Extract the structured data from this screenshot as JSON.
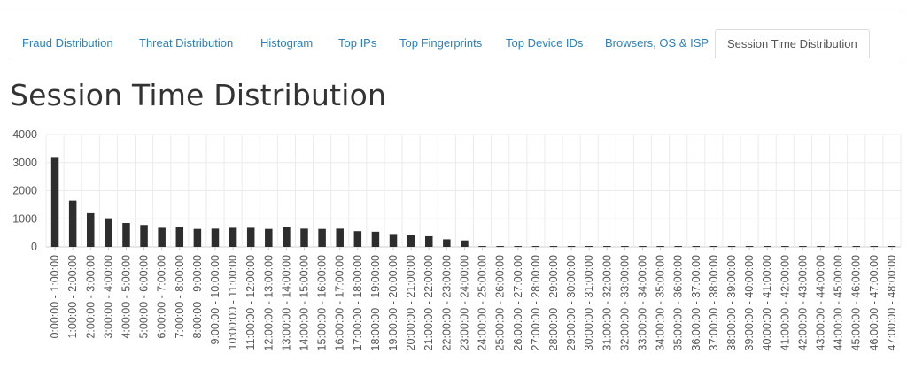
{
  "tabs": [
    {
      "label": "Fraud Distribution"
    },
    {
      "label": "Threat Distribution"
    },
    {
      "label": "Histogram"
    },
    {
      "label": "Top IPs"
    },
    {
      "label": "Top Fingerprints"
    },
    {
      "label": "Top Device IDs"
    },
    {
      "label": "Browsers, OS & ISP"
    },
    {
      "label": "Session Time Distribution",
      "active": true
    }
  ],
  "page": {
    "title": "Session Time Distribution"
  },
  "colors": {
    "bar": "#2d2d2d",
    "grid": "#ebebeb",
    "axis": "#cfcfcf",
    "tab_link": "#2c7fb8"
  },
  "chart_data": {
    "type": "bar",
    "title": "",
    "xlabel": "",
    "ylabel": "",
    "ylim": [
      0,
      4000
    ],
    "yticks": [
      0,
      1000,
      2000,
      3000,
      4000
    ],
    "ytick_labels": [
      "0",
      "1000",
      "2000",
      "3000",
      "4000"
    ],
    "grid": true,
    "categories": [
      "0:00:00 - 1:00:00",
      "1:00:00 - 2:00:00",
      "2:00:00 - 3:00:00",
      "3:00:00 - 4:00:00",
      "4:00:00 - 5:00:00",
      "5:00:00 - 6:00:00",
      "6:00:00 - 7:00:00",
      "7:00:00 - 8:00:00",
      "8:00:00 - 9:00:00",
      "9:00:00 - 10:00:00",
      "10:00:00 - 11:00:00",
      "11:00:00 - 12:00:00",
      "12:00:00 - 13:00:00",
      "13:00:00 - 14:00:00",
      "14:00:00 - 15:00:00",
      "15:00:00 - 16:00:00",
      "16:00:00 - 17:00:00",
      "17:00:00 - 18:00:00",
      "18:00:00 - 19:00:00",
      "19:00:00 - 20:00:00",
      "20:00:00 - 21:00:00",
      "21:00:00 - 22:00:00",
      "22:00:00 - 23:00:00",
      "23:00:00 - 24:00:00",
      "24:00:00 - 25:00:00",
      "25:00:00 - 26:00:00",
      "26:00:00 - 27:00:00",
      "27:00:00 - 28:00:00",
      "28:00:00 - 29:00:00",
      "29:00:00 - 30:00:00",
      "30:00:00 - 31:00:00",
      "31:00:00 - 32:00:00",
      "32:00:00 - 33:00:00",
      "33:00:00 - 34:00:00",
      "34:00:00 - 35:00:00",
      "35:00:00 - 36:00:00",
      "36:00:00 - 37:00:00",
      "37:00:00 - 38:00:00",
      "38:00:00 - 39:00:00",
      "39:00:00 - 40:00:00",
      "40:00:00 - 41:00:00",
      "41:00:00 - 42:00:00",
      "42:00:00 - 43:00:00",
      "43:00:00 - 44:00:00",
      "44:00:00 - 45:00:00",
      "45:00:00 - 46:00:00",
      "46:00:00 - 47:00:00",
      "47:00:00 - 48:00:00"
    ],
    "values": [
      3200,
      1650,
      1200,
      1020,
      850,
      780,
      680,
      700,
      640,
      650,
      680,
      680,
      640,
      700,
      650,
      640,
      650,
      560,
      540,
      460,
      410,
      380,
      270,
      230,
      30,
      30,
      30,
      30,
      30,
      30,
      30,
      30,
      30,
      30,
      30,
      30,
      30,
      30,
      30,
      30,
      30,
      30,
      30,
      30,
      30,
      30,
      30,
      30
    ]
  }
}
